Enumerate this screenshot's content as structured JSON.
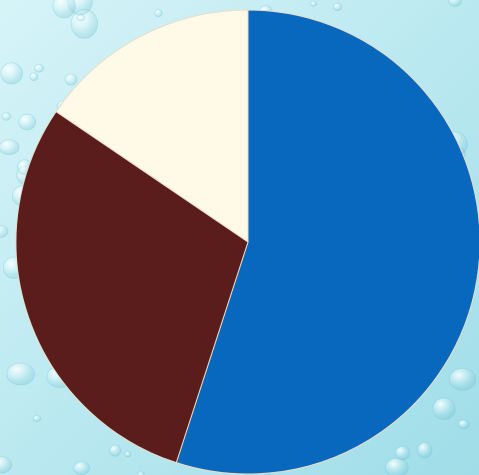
{
  "background": {
    "style": "water-droplets",
    "base_color": "#9fdde8",
    "highlight_color": "#d6f4f8",
    "shadow_color": "#72c3d4"
  },
  "chart_data": {
    "type": "pie",
    "title": "",
    "legend": "none",
    "slices": [
      {
        "value": 55.0,
        "color": "#0868be"
      },
      {
        "value": 29.5,
        "color": "#5a1d1b"
      },
      {
        "value": 15.5,
        "color": "#fffae8"
      }
    ]
  }
}
